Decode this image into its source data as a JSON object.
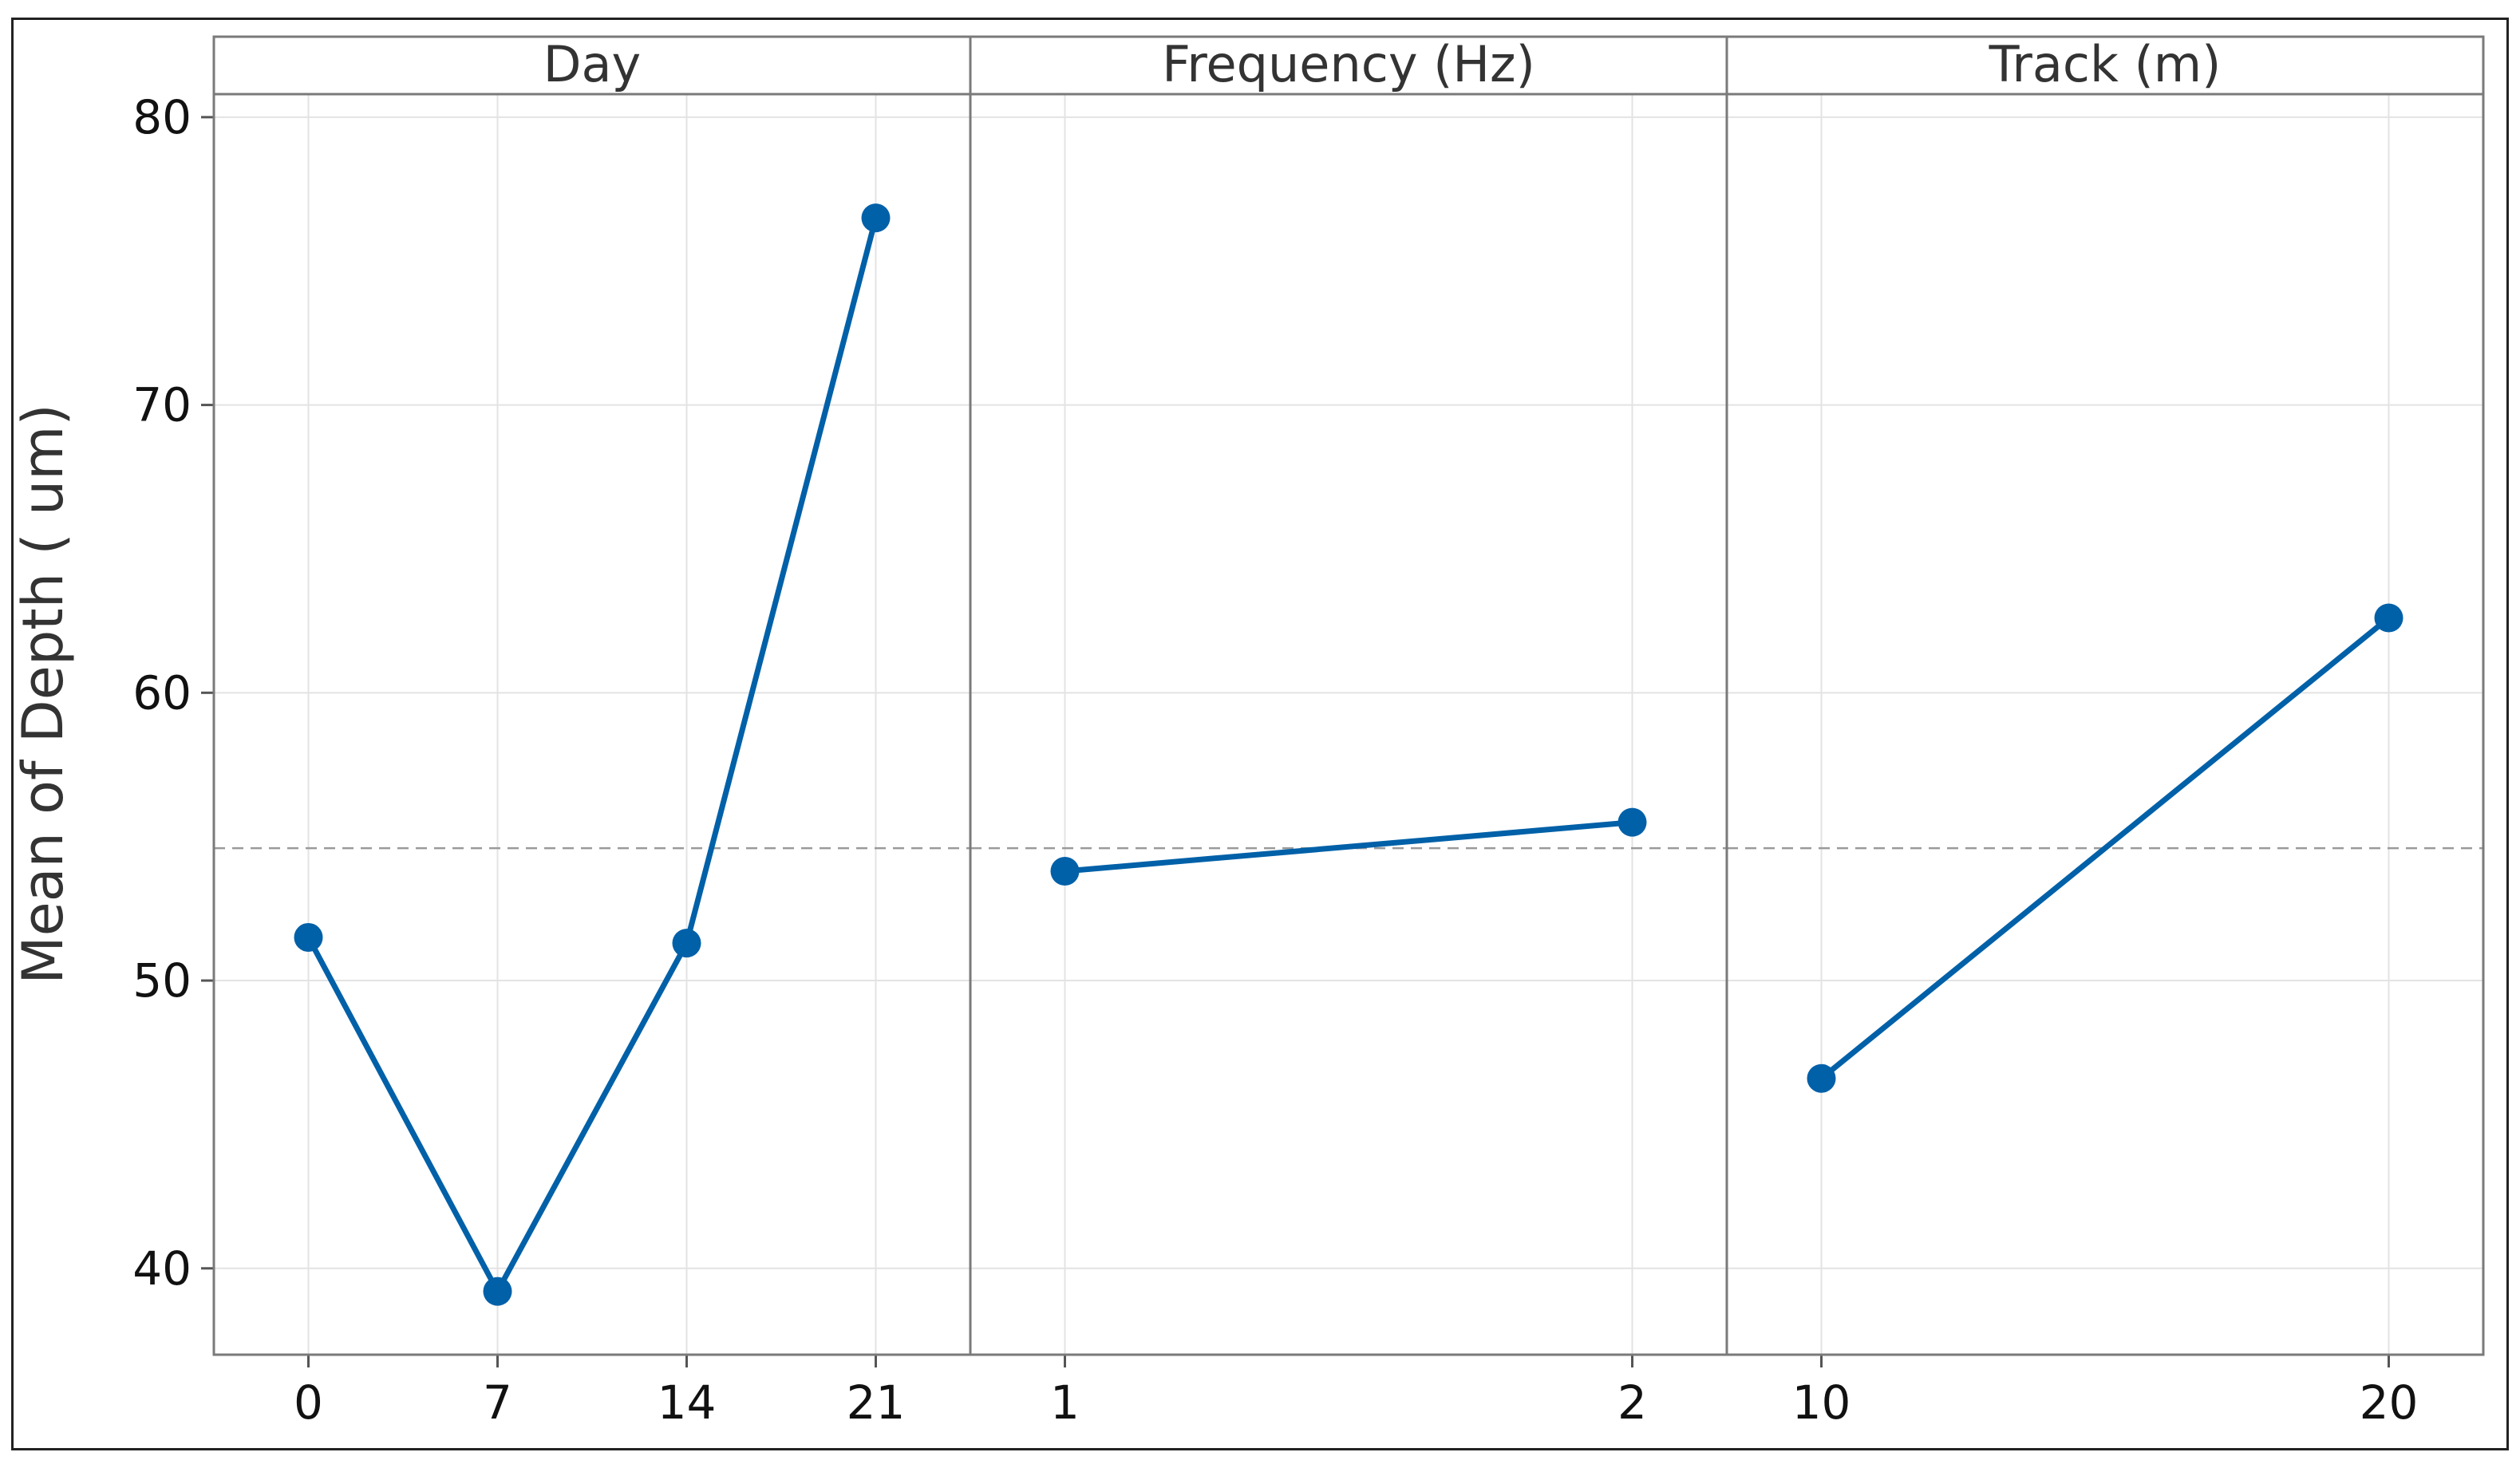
{
  "chart_data": {
    "type": "line",
    "ylabel": "Mean of Depth ( um)",
    "ylim": [
      37,
      80.8
    ],
    "yticks": [
      "40",
      "50",
      "60",
      "70",
      "80"
    ],
    "grand_mean": 54.6,
    "series_color": "#0060A8",
    "panels": [
      {
        "title": "Day",
        "categories": [
          "0",
          "7",
          "14",
          "21"
        ],
        "values": [
          51.5,
          39.2,
          51.3,
          76.5
        ]
      },
      {
        "title": "Frequency (Hz)",
        "categories": [
          "1",
          "2"
        ],
        "values": [
          53.8,
          55.5
        ]
      },
      {
        "title": "Track (m)",
        "categories": [
          "10",
          "20"
        ],
        "values": [
          46.6,
          62.6
        ]
      }
    ]
  }
}
